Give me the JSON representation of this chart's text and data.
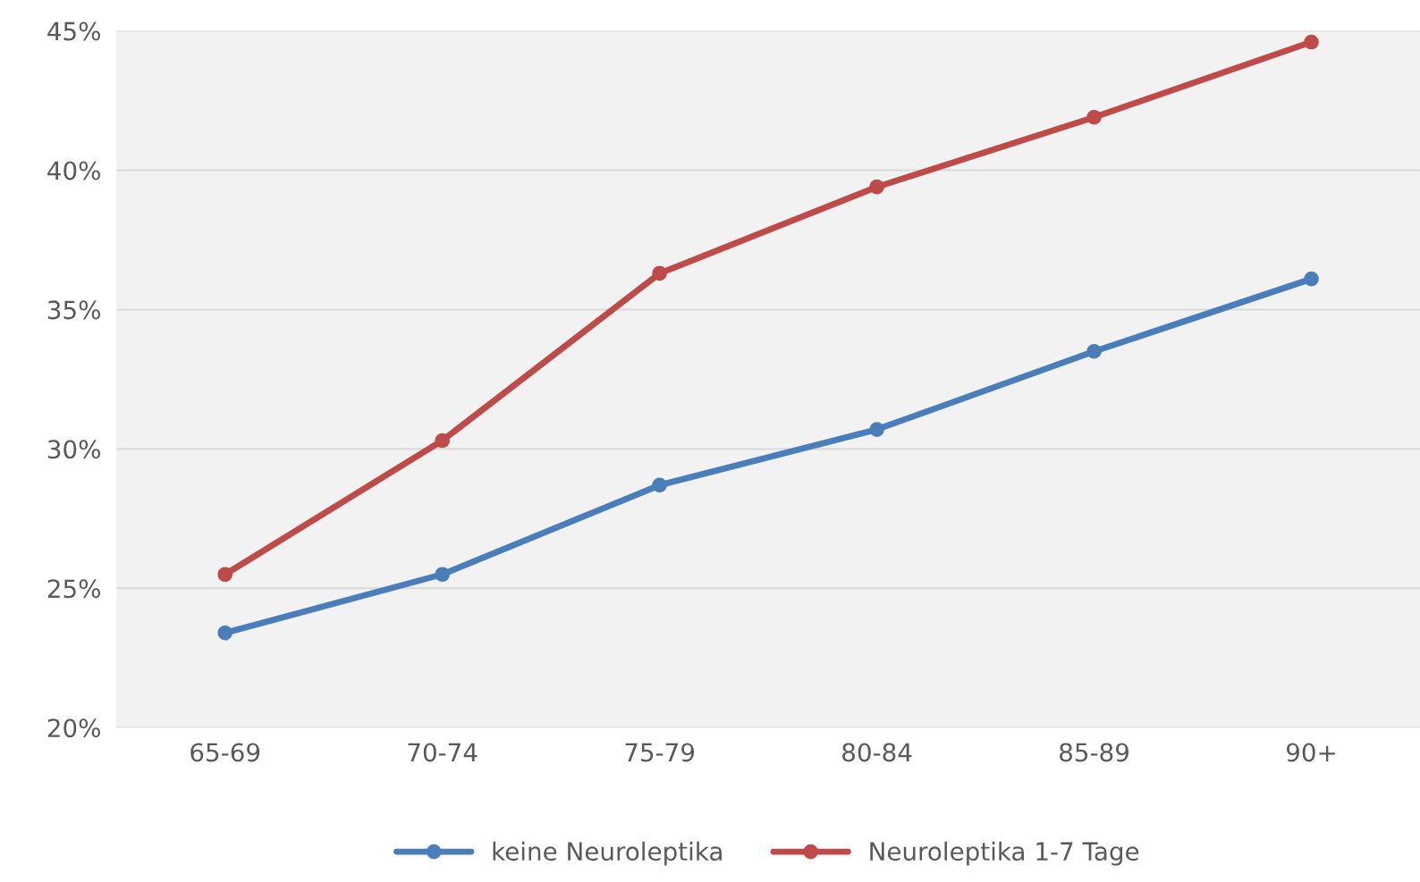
{
  "chart_data": {
    "type": "line",
    "categories": [
      "65-69",
      "70-74",
      "75-79",
      "80-84",
      "85-89",
      "90+"
    ],
    "series": [
      {
        "name": "keine Neuroleptika",
        "color": "#4a7ebb",
        "values": [
          23.4,
          25.5,
          28.7,
          30.7,
          33.5,
          36.1
        ]
      },
      {
        "name": "Neuroleptika 1-7 Tage",
        "color": "#be4b48",
        "values": [
          25.5,
          30.3,
          36.3,
          39.4,
          41.9,
          44.6
        ]
      }
    ],
    "ylim": [
      20,
      45
    ],
    "yticks": [
      {
        "value": 20,
        "label": "20%"
      },
      {
        "value": 25,
        "label": "25%"
      },
      {
        "value": 30,
        "label": "30%"
      },
      {
        "value": 35,
        "label": "35%"
      },
      {
        "value": 40,
        "label": "40%"
      },
      {
        "value": 45,
        "label": "45%"
      }
    ],
    "grid": "y",
    "legend": "bottom",
    "marker": "circle",
    "line_style": "solid"
  }
}
